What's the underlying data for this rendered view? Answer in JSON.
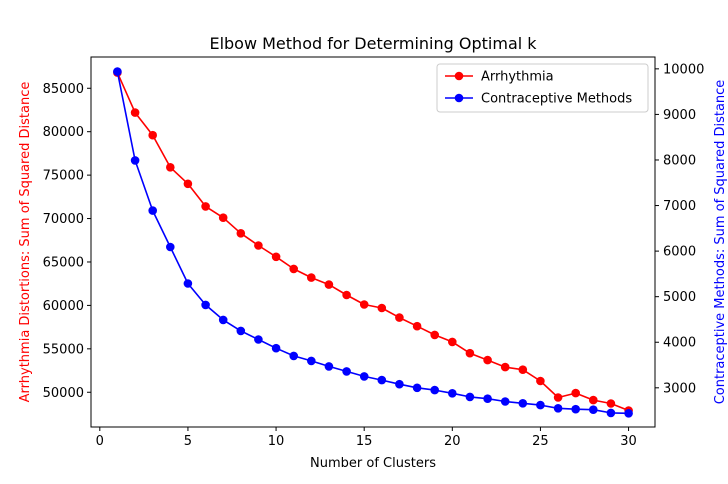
{
  "chart_data": {
    "type": "line",
    "title": "Elbow Method for Determining Optimal k",
    "xlabel": "Number of Clusters",
    "ylabel_left": "Arrhythmia Distortions: Sum of Squared Distance",
    "ylabel_right": "Contraceptive Methods: Sum of Squared Distance",
    "xlim": [
      -0.5,
      31.5
    ],
    "ylim_left": [
      46000,
      88600
    ],
    "ylim_right": [
      2140,
      10260
    ],
    "x_ticks": [
      0,
      5,
      10,
      15,
      20,
      25,
      30
    ],
    "y_ticks_left": [
      50000,
      55000,
      60000,
      65000,
      70000,
      75000,
      80000,
      85000
    ],
    "y_ticks_right": [
      3000,
      4000,
      5000,
      6000,
      7000,
      8000,
      9000,
      10000
    ],
    "legend_position": "upper right",
    "grid": false,
    "x": [
      1,
      2,
      3,
      4,
      5,
      6,
      7,
      8,
      9,
      10,
      11,
      12,
      13,
      14,
      15,
      16,
      17,
      18,
      19,
      20,
      21,
      22,
      23,
      24,
      25,
      26,
      27,
      28,
      29,
      30
    ],
    "series": [
      {
        "name": "Arrhythmia",
        "axis": "left",
        "color": "#ff0000",
        "values": [
          86800,
          82200,
          79600,
          75900,
          74000,
          71400,
          70100,
          68300,
          66900,
          65600,
          64200,
          63200,
          62400,
          61200,
          60100,
          59700,
          58600,
          57600,
          56600,
          55800,
          54500,
          53700,
          52900,
          52600,
          51300,
          49400,
          49900,
          49100,
          48700,
          47900
        ]
      },
      {
        "name": "Contraceptive Methods",
        "axis": "right",
        "color": "#0000ff",
        "values": [
          9940,
          7990,
          6890,
          6090,
          5290,
          4820,
          4490,
          4250,
          4060,
          3870,
          3700,
          3590,
          3470,
          3360,
          3250,
          3170,
          3080,
          3000,
          2950,
          2880,
          2800,
          2760,
          2700,
          2660,
          2620,
          2550,
          2530,
          2520,
          2450,
          2440
        ]
      }
    ]
  }
}
